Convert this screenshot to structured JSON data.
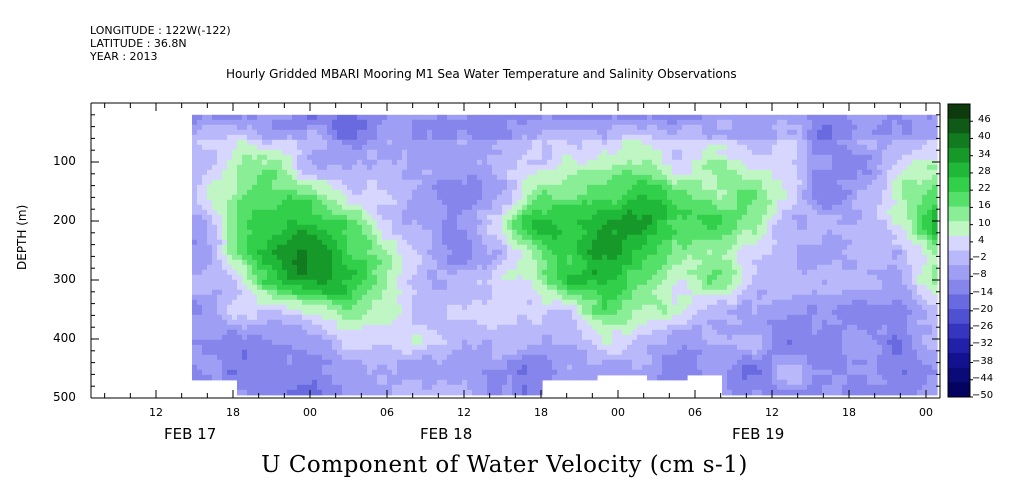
{
  "header": {
    "longitude": "LONGITUDE : 122W(-122)",
    "latitude": "LATITUDE : 36.8N",
    "year": "YEAR : 2013"
  },
  "chart_data": {
    "type": "heatmap",
    "title": "Hourly Gridded MBARI Mooring M1 Sea Water Temperature and Salinity Observations",
    "variable_title": "U Component of Water Velocity (cm s-1)",
    "ylabel": "DEPTH (m)",
    "ylim": [
      500,
      0
    ],
    "y_inverted": true,
    "y_ticks": [
      100,
      200,
      300,
      400,
      500
    ],
    "x_hour_ticks": [
      "12",
      "18",
      "00",
      "06",
      "12",
      "18",
      "00",
      "06",
      "12",
      "18",
      "00"
    ],
    "x_day_labels": [
      "FEB 17",
      "FEB 18",
      "FEB 19"
    ],
    "data_extent": {
      "time_start_hours_from_feb17_00": -6,
      "time_end_hours_from_feb17_00": 48,
      "depth_top": 20,
      "depth_bottom": 490
    },
    "colorbar": {
      "levels": [
        46,
        40,
        34,
        28,
        22,
        16,
        10,
        4,
        -2,
        -8,
        -14,
        -20,
        -26,
        -32,
        -38,
        -44,
        -50
      ],
      "range": [
        -50,
        52
      ],
      "colors": [
        "#0d3b0d",
        "#0f5a16",
        "#127a1f",
        "#17992a",
        "#1fb838",
        "#32cf4a",
        "#55e06a",
        "#8aee96",
        "#c0f6c4",
        "#d6d6ff",
        "#b8b8fa",
        "#9e9ef4",
        "#8585ec",
        "#6a6ae0",
        "#5050d2",
        "#3535c0",
        "#2020a8",
        "#121290",
        "#0a0a78",
        "#040460"
      ]
    },
    "field_description": "alternating positive (green) and negative (blue) velocity bands"
  }
}
